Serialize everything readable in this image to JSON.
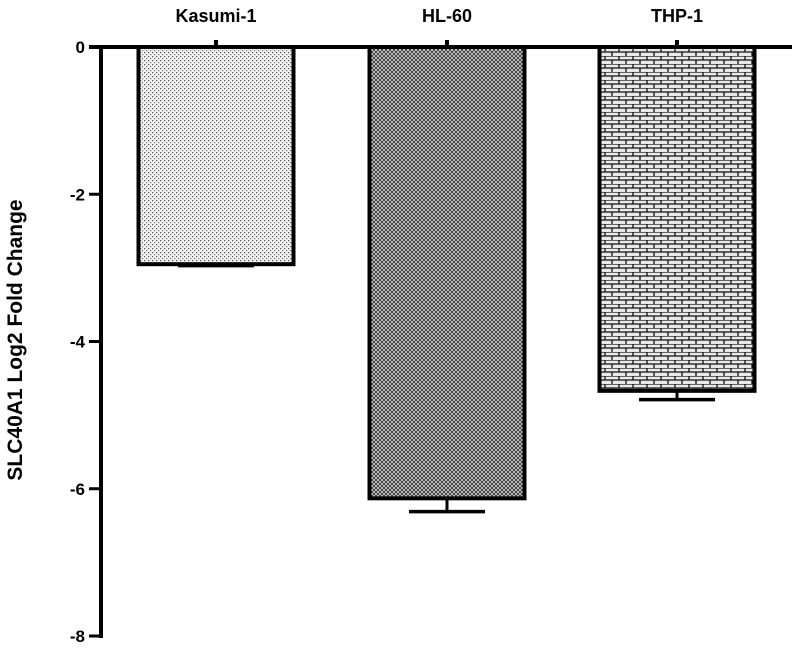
{
  "chart_data": {
    "type": "bar",
    "title": "",
    "xlabel": "",
    "ylabel": "SLC40A1 Log2 Fold Change",
    "categories": [
      "Kasumi-1",
      "HL-60",
      "THP-1"
    ],
    "values": [
      -2.95,
      -6.13,
      -4.67
    ],
    "error": [
      0.02,
      0.18,
      0.12
    ],
    "ylim": [
      -8,
      0
    ],
    "yticks": [
      0,
      -2,
      -4,
      -6,
      -8
    ],
    "category_label_position": "top",
    "grid": false,
    "legend": "none",
    "bar_fills": [
      "light-stipple",
      "fine-crosshatch",
      "brick"
    ],
    "colors": {
      "axis": "#000000",
      "bar_outline": "#000000",
      "background": "#ffffff"
    }
  }
}
